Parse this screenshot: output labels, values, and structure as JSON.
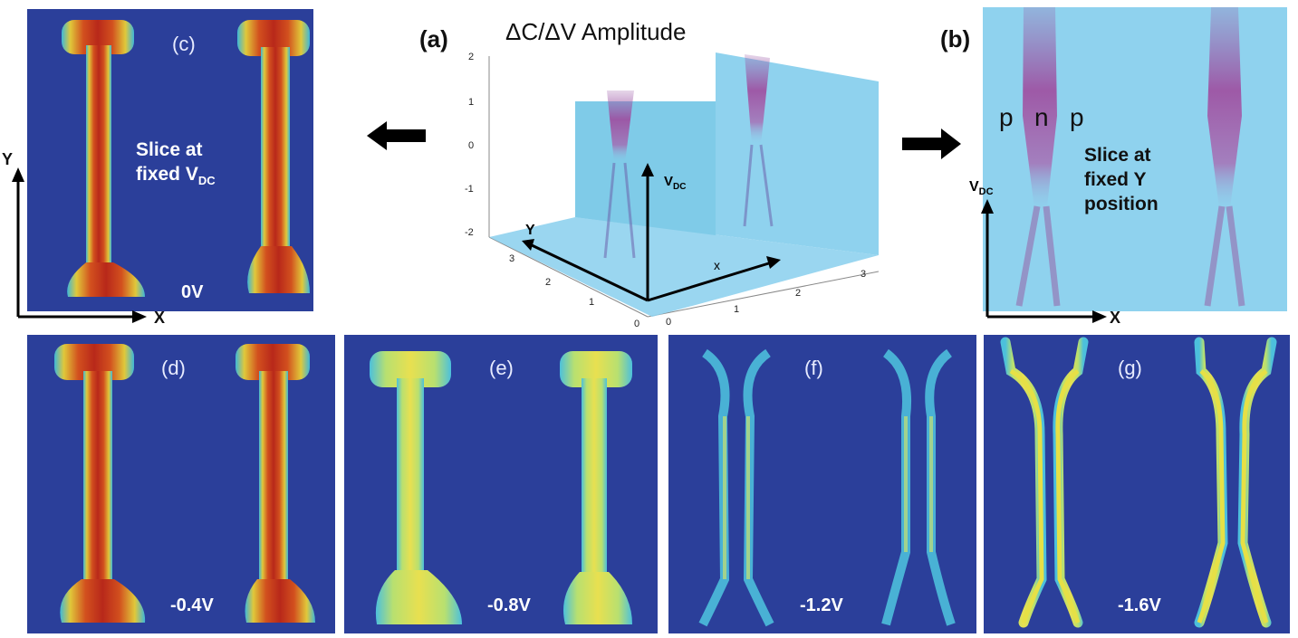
{
  "panel_a": {
    "label": "(a)",
    "title": "ΔC/ΔV Amplitude",
    "vdc_axis": "V",
    "vdc_sub": "DC",
    "x_axis": "x",
    "y_axis": "Y",
    "z_ticks": [
      "2",
      "1",
      "0",
      "-1",
      "-2"
    ],
    "y_ticks": [
      "3",
      "2",
      "1",
      "0"
    ],
    "x_ticks": [
      "0",
      "1",
      "2",
      "3"
    ]
  },
  "panel_b": {
    "label": "(b)",
    "regions": [
      "p",
      "n",
      "p"
    ],
    "slice_text_line1": "Slice at",
    "slice_text_line2": "fixed Y",
    "slice_text_line3": "position",
    "axis_y": "V",
    "axis_y_sub": "DC",
    "axis_x": "X"
  },
  "panel_c": {
    "label": "(c)",
    "slice_text_line1": "Slice at",
    "slice_text_line2": "fixed V",
    "slice_text_sub": "DC",
    "voltage": "0V",
    "axis_y": "Y",
    "axis_x": "X"
  },
  "panel_d": {
    "label": "(d)",
    "voltage": "-0.4V"
  },
  "panel_e": {
    "label": "(e)",
    "voltage": "-0.8V"
  },
  "panel_f": {
    "label": "(f)",
    "voltage": "-1.2V"
  },
  "panel_g": {
    "label": "(g)",
    "voltage": "-1.6V"
  },
  "colors": {
    "background_blue": "#2b3f9a",
    "light_blue": "#8fd2ee",
    "red": "#c83a1e",
    "yellow": "#e6e046",
    "cyan": "#4fc6e0",
    "purple": "#9a4a9a"
  }
}
